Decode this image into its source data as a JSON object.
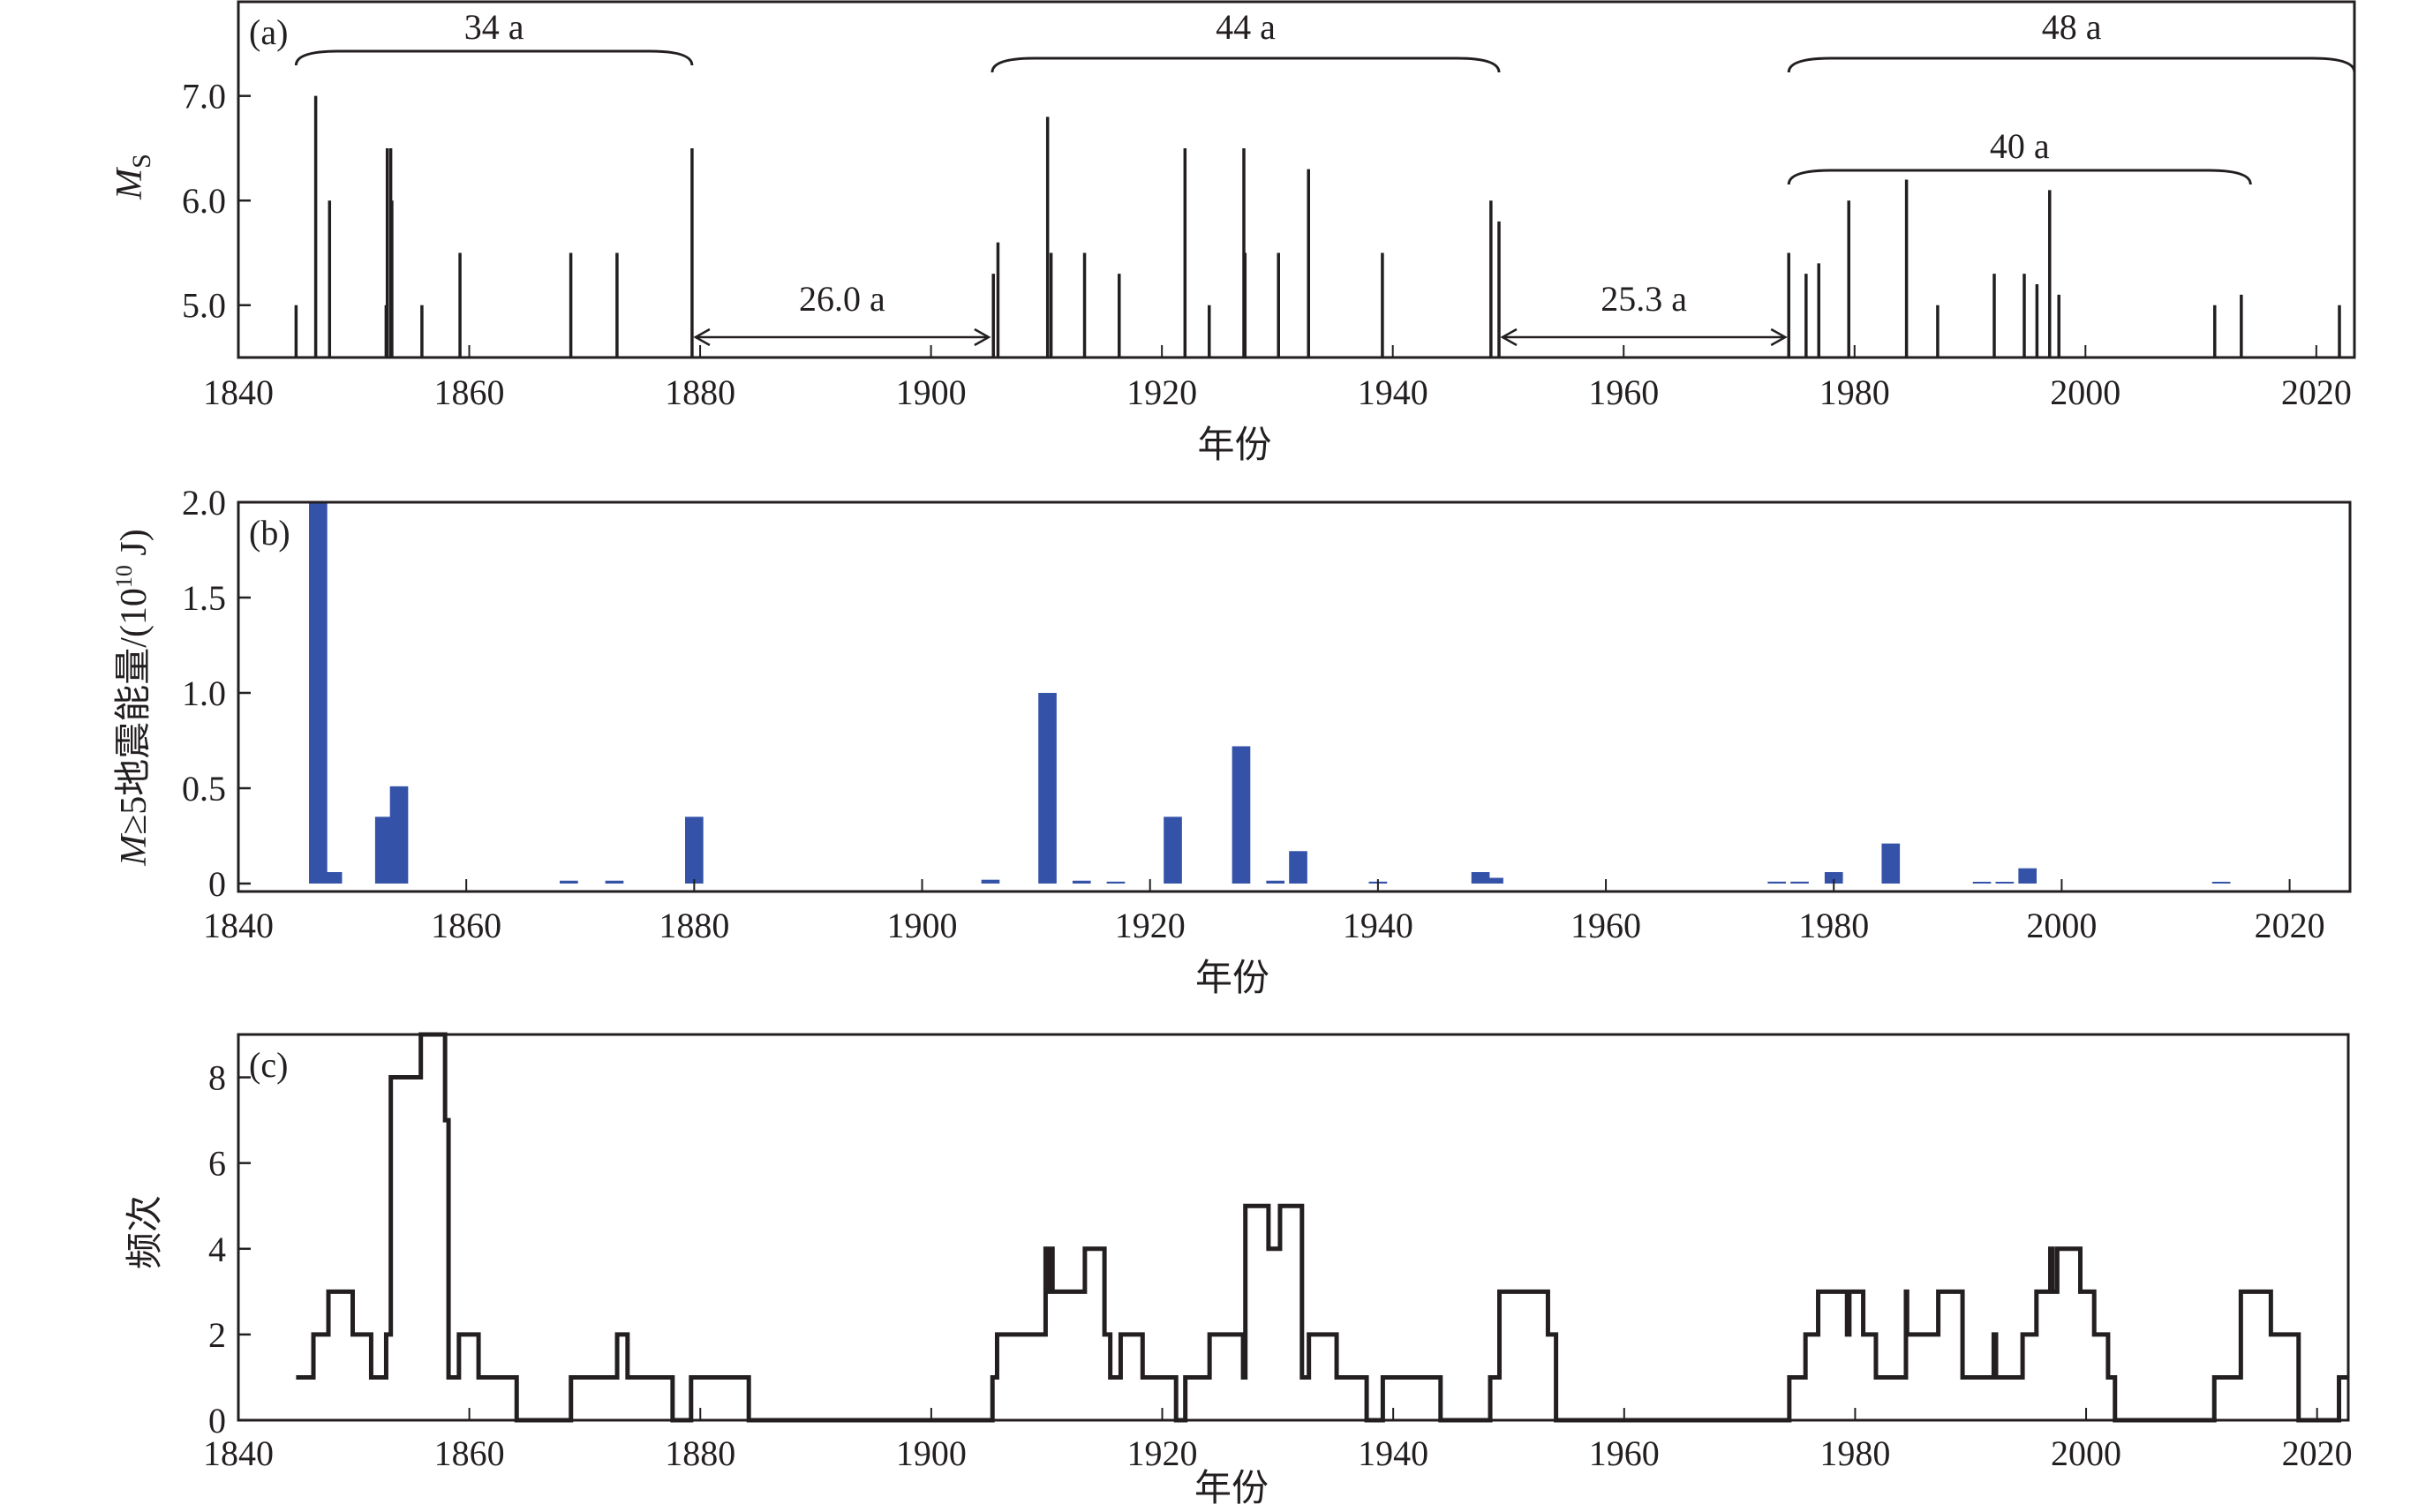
{
  "chart_data": [
    {
      "panel_label": "(a)",
      "type": "stem",
      "xlabel": "年份",
      "ylabel": {
        "main": "M",
        "sub": "S"
      },
      "xlim": [
        1840,
        2023.3
      ],
      "ylim": [
        4.5,
        7.9
      ],
      "xticks": [
        1840,
        1860,
        1880,
        1900,
        1920,
        1940,
        1960,
        1980,
        2000,
        2020
      ],
      "yticks": [
        {
          "v": 5.0,
          "label": "5.0"
        },
        {
          "v": 6.0,
          "label": "6.0"
        },
        {
          "v": 7.0,
          "label": "7.0"
        }
      ],
      "events": [
        [
          1845.0,
          5.0
        ],
        [
          1846.7,
          7.0
        ],
        [
          1847.9,
          6.0
        ],
        [
          1852.8,
          5.0
        ],
        [
          1852.9,
          6.5
        ],
        [
          1853.2,
          6.5
        ],
        [
          1853.3,
          6.0
        ],
        [
          1855.9,
          5.0
        ],
        [
          1859.2,
          5.5
        ],
        [
          1868.8,
          5.5
        ],
        [
          1872.8,
          5.5
        ],
        [
          1879.3,
          6.5
        ],
        [
          1905.4,
          5.3
        ],
        [
          1905.8,
          5.6
        ],
        [
          1910.1,
          6.8
        ],
        [
          1910.4,
          5.5
        ],
        [
          1913.3,
          5.5
        ],
        [
          1916.3,
          5.3
        ],
        [
          1922.0,
          6.5
        ],
        [
          1924.1,
          5.0
        ],
        [
          1927.1,
          6.5
        ],
        [
          1927.2,
          5.5
        ],
        [
          1930.1,
          5.5
        ],
        [
          1932.7,
          6.3
        ],
        [
          1939.1,
          5.5
        ],
        [
          1948.5,
          6.0
        ],
        [
          1949.2,
          5.8
        ],
        [
          1974.3,
          5.5
        ],
        [
          1975.8,
          5.3
        ],
        [
          1976.9,
          5.4
        ],
        [
          1979.5,
          6.0
        ],
        [
          1984.5,
          6.2
        ],
        [
          1987.2,
          5.0
        ],
        [
          1992.1,
          5.3
        ],
        [
          1994.7,
          5.3
        ],
        [
          1995.8,
          5.2
        ],
        [
          1996.9,
          6.1
        ],
        [
          1997.7,
          5.1
        ],
        [
          2011.2,
          5.0
        ],
        [
          2013.5,
          5.1
        ],
        [
          2022.0,
          5.0
        ]
      ],
      "braces": [
        {
          "label": "34 a",
          "from": 1845.0,
          "to": 1879.3
        },
        {
          "label": "44 a",
          "from": 1905.3,
          "to": 1949.2
        },
        {
          "label": "48 a",
          "from": 1974.3,
          "to": 2023.3
        },
        {
          "label": "40 a",
          "from": 1974.3,
          "to": 2014.3
        }
      ],
      "arrows": [
        {
          "label": "26.0 a",
          "from": 1879.3,
          "to": 1905.3
        },
        {
          "label": "25.3 a",
          "from": 1949.2,
          "to": 1974.3
        }
      ]
    },
    {
      "panel_label": "(b)",
      "type": "bar",
      "xlabel": "年份",
      "ylabel": {
        "main": "M",
        "rest": "≥5地震能量/(10",
        "exp": "10",
        "unit": " J)"
      },
      "xlim": [
        1840,
        2025.3
      ],
      "ylim": [
        0,
        2.0
      ],
      "xticks": [
        1840,
        1860,
        1880,
        1900,
        1920,
        1940,
        1960,
        1980,
        2000,
        2020
      ],
      "yticks": [
        {
          "v": 0,
          "label": "0"
        },
        {
          "v": 0.5,
          "label": "0.5"
        },
        {
          "v": 1.0,
          "label": "1.0"
        },
        {
          "v": 1.5,
          "label": "1.5"
        },
        {
          "v": 2.0,
          "label": "2.0"
        }
      ],
      "bar_color": "#3452a8",
      "bars": [
        [
          1847.0,
          2.0
        ],
        [
          1848.3,
          0.06
        ],
        [
          1852.8,
          0.35
        ],
        [
          1854.1,
          0.51
        ],
        [
          1869.0,
          0.015
        ],
        [
          1873.0,
          0.015
        ],
        [
          1880.0,
          0.35
        ],
        [
          1906.0,
          0.02
        ],
        [
          1911.0,
          1.0
        ],
        [
          1914.0,
          0.015
        ],
        [
          1917.0,
          0.01
        ],
        [
          1922.0,
          0.35
        ],
        [
          1928.0,
          0.72
        ],
        [
          1931.0,
          0.015
        ],
        [
          1933.0,
          0.17
        ],
        [
          1940.0,
          0.01
        ],
        [
          1949.0,
          0.06
        ],
        [
          1950.2,
          0.03
        ],
        [
          1975.0,
          0.01
        ],
        [
          1977.0,
          0.01
        ],
        [
          1980.0,
          0.06
        ],
        [
          1985.0,
          0.21
        ],
        [
          1993.0,
          0.005
        ],
        [
          1995.0,
          0.005
        ],
        [
          1997.0,
          0.08
        ],
        [
          2014.0,
          0.005
        ]
      ]
    },
    {
      "panel_label": "(c)",
      "type": "line",
      "xlabel": "年份",
      "ylabel": {
        "main": "频次"
      },
      "xlim": [
        1840,
        2022.7
      ],
      "ylim": [
        0,
        9
      ],
      "xticks": [
        1840,
        1860,
        1880,
        1900,
        1920,
        1940,
        1960,
        1980,
        2000,
        2020
      ],
      "yticks": [
        {
          "v": 0,
          "label": "0"
        },
        {
          "v": 2,
          "label": "2"
        },
        {
          "v": 4,
          "label": "4"
        },
        {
          "v": 6,
          "label": "6"
        },
        {
          "v": 8,
          "label": "8"
        }
      ],
      "steps": [
        [
          1845.0,
          1
        ],
        [
          1846.5,
          2
        ],
        [
          1847.8,
          3
        ],
        [
          1849.9,
          2
        ],
        [
          1851.5,
          1
        ],
        [
          1852.8,
          2
        ],
        [
          1853.2,
          8
        ],
        [
          1855.8,
          9
        ],
        [
          1857.9,
          7
        ],
        [
          1858.2,
          1
        ],
        [
          1859.1,
          2
        ],
        [
          1860.8,
          1
        ],
        [
          1864.1,
          0
        ],
        [
          1868.8,
          1
        ],
        [
          1872.8,
          2
        ],
        [
          1873.7,
          1
        ],
        [
          1877.6,
          0
        ],
        [
          1879.2,
          1
        ],
        [
          1884.2,
          0
        ],
        [
          1905.3,
          1
        ],
        [
          1905.7,
          2
        ],
        [
          1909.9,
          4
        ],
        [
          1910.1,
          3
        ],
        [
          1910.3,
          4
        ],
        [
          1910.5,
          3
        ],
        [
          1913.3,
          4
        ],
        [
          1915.0,
          2
        ],
        [
          1915.5,
          1
        ],
        [
          1916.4,
          2
        ],
        [
          1918.3,
          1
        ],
        [
          1921.2,
          0
        ],
        [
          1922.0,
          1
        ],
        [
          1924.1,
          2
        ],
        [
          1927.0,
          1
        ],
        [
          1927.2,
          5
        ],
        [
          1929.2,
          4
        ],
        [
          1930.2,
          5
        ],
        [
          1932.1,
          1
        ],
        [
          1932.7,
          2
        ],
        [
          1935.1,
          1
        ],
        [
          1937.7,
          0
        ],
        [
          1939.1,
          1
        ],
        [
          1944.1,
          0
        ],
        [
          1948.4,
          1
        ],
        [
          1949.2,
          3
        ],
        [
          1953.4,
          2
        ],
        [
          1954.1,
          0
        ],
        [
          1974.3,
          1
        ],
        [
          1975.7,
          2
        ],
        [
          1976.8,
          3
        ],
        [
          1979.3,
          2
        ],
        [
          1979.5,
          3
        ],
        [
          1980.7,
          2
        ],
        [
          1981.8,
          1
        ],
        [
          1984.4,
          3
        ],
        [
          1984.5,
          2
        ],
        [
          1987.2,
          3
        ],
        [
          1989.3,
          1
        ],
        [
          1992.0,
          2
        ],
        [
          1992.2,
          1
        ],
        [
          1994.5,
          2
        ],
        [
          1995.7,
          3
        ],
        [
          1996.9,
          4
        ],
        [
          1997.1,
          3
        ],
        [
          1997.5,
          4
        ],
        [
          1999.5,
          3
        ],
        [
          2000.7,
          2
        ],
        [
          2001.9,
          1
        ],
        [
          2002.5,
          0
        ],
        [
          2011.1,
          1
        ],
        [
          2013.4,
          3
        ],
        [
          2016.0,
          2
        ],
        [
          2018.4,
          0
        ],
        [
          2021.9,
          1
        ],
        [
          2022.6,
          1
        ]
      ]
    }
  ]
}
